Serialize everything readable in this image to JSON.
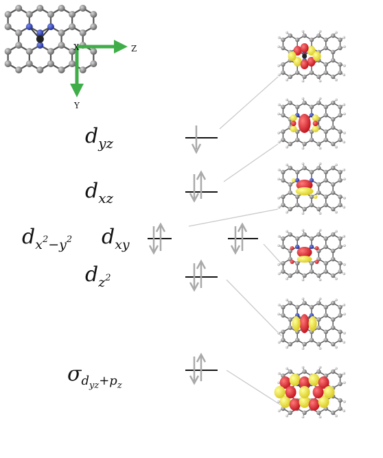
{
  "axes": {
    "center_label": "X",
    "z_label": "Z",
    "y_label": "Y"
  },
  "levels": [
    {
      "id": "dyz",
      "main": "d",
      "sub": "yz",
      "sup": "",
      "occupancy": "single_down"
    },
    {
      "id": "dxz",
      "main": "d",
      "sub": "xz",
      "sup": "",
      "occupancy": "paired"
    },
    {
      "id": "dx2y2",
      "main": "d",
      "sub": "x",
      "sup": "2",
      "sub2": "−y",
      "sup2": "2",
      "occupancy": "paired"
    },
    {
      "id": "dxy",
      "main": "d",
      "sub": "xy",
      "sup": "",
      "occupancy": "paired"
    },
    {
      "id": "dz2",
      "main": "d",
      "sub": "z",
      "sup": "2",
      "occupancy": "paired"
    },
    {
      "id": "sigma",
      "main": "σ",
      "sub": "d",
      "subsub": "yz",
      "sub_plus": "+p",
      "subsub2": "z",
      "occupancy": "paired"
    }
  ],
  "colors": {
    "carbon": "#8a8a8a",
    "nitrogen": "#2c3fae",
    "metal": "#2a2a2a",
    "hydrogen": "#c8c8c8",
    "lobe_pos": "#e0202a",
    "lobe_neg": "#f3e83a",
    "axis_arrow": "#3fae49",
    "spin_arrow": "#a9a9a9",
    "level_line": "#111111",
    "connector": "#c9c9c9"
  },
  "orbital_panels": [
    {
      "name": "orbital-image-1",
      "lobes": "dyz_like"
    },
    {
      "name": "orbital-image-2",
      "lobes": "dxz_like"
    },
    {
      "name": "orbital-image-3",
      "lobes": "dx2y2_like"
    },
    {
      "name": "orbital-image-4",
      "lobes": "dxy_like"
    },
    {
      "name": "orbital-image-5",
      "lobes": "dz2_like"
    },
    {
      "name": "orbital-image-6",
      "lobes": "sigma_like"
    }
  ]
}
